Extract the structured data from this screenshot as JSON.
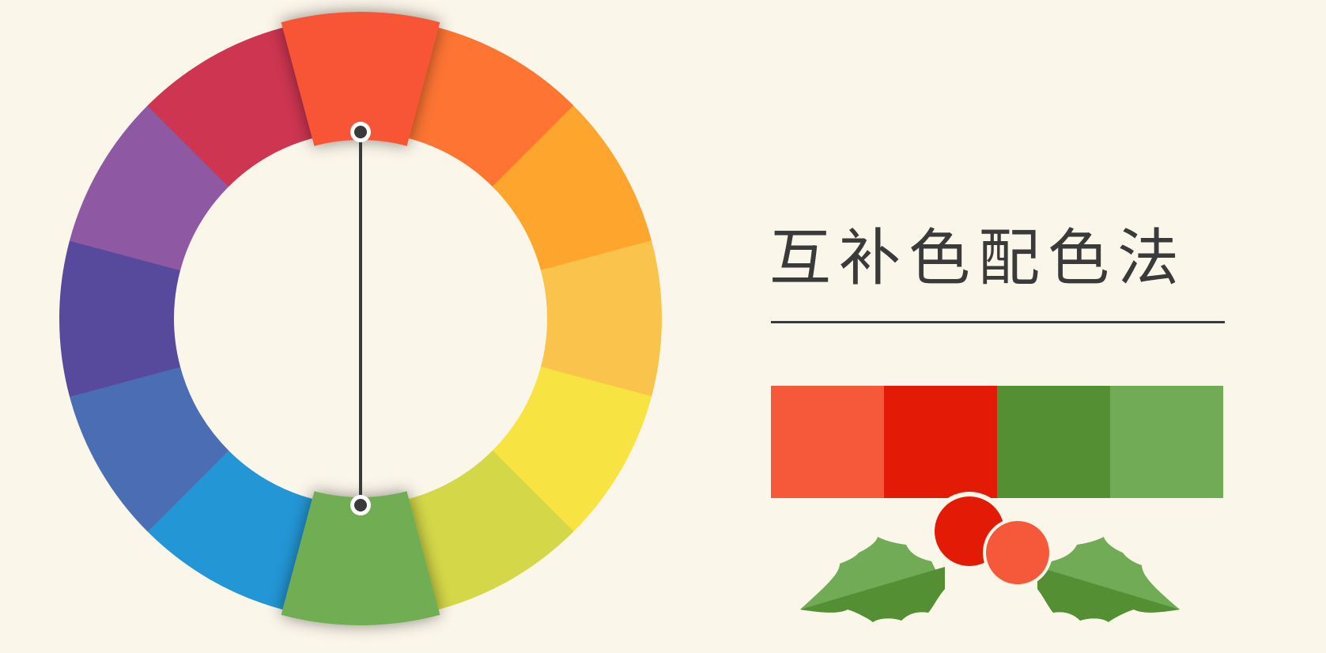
{
  "title": "互补色配色法",
  "wheel": {
    "segments": [
      {
        "color": "#f75436"
      },
      {
        "color": "#fd7433"
      },
      {
        "color": "#fda52d"
      },
      {
        "color": "#fac34b"
      },
      {
        "color": "#f7e443"
      },
      {
        "color": "#d4d848"
      },
      {
        "color": "#71ad52"
      },
      {
        "color": "#2396d5"
      },
      {
        "color": "#4a6db3"
      },
      {
        "color": "#574a9c"
      },
      {
        "color": "#8e58a2"
      },
      {
        "color": "#cd3550"
      }
    ],
    "highlighted": [
      0,
      6
    ],
    "connector_color": "#3a3a3a"
  },
  "palette": {
    "swatches": [
      "#f6593a",
      "#e31b06",
      "#548f34",
      "#72ab55"
    ]
  },
  "decoration": {
    "name": "holly-leaves-and-berries",
    "leaf_dark": "#548f34",
    "leaf_light": "#72ab55",
    "berry_red": "#e31b06",
    "berry_orange": "#f6593a"
  }
}
